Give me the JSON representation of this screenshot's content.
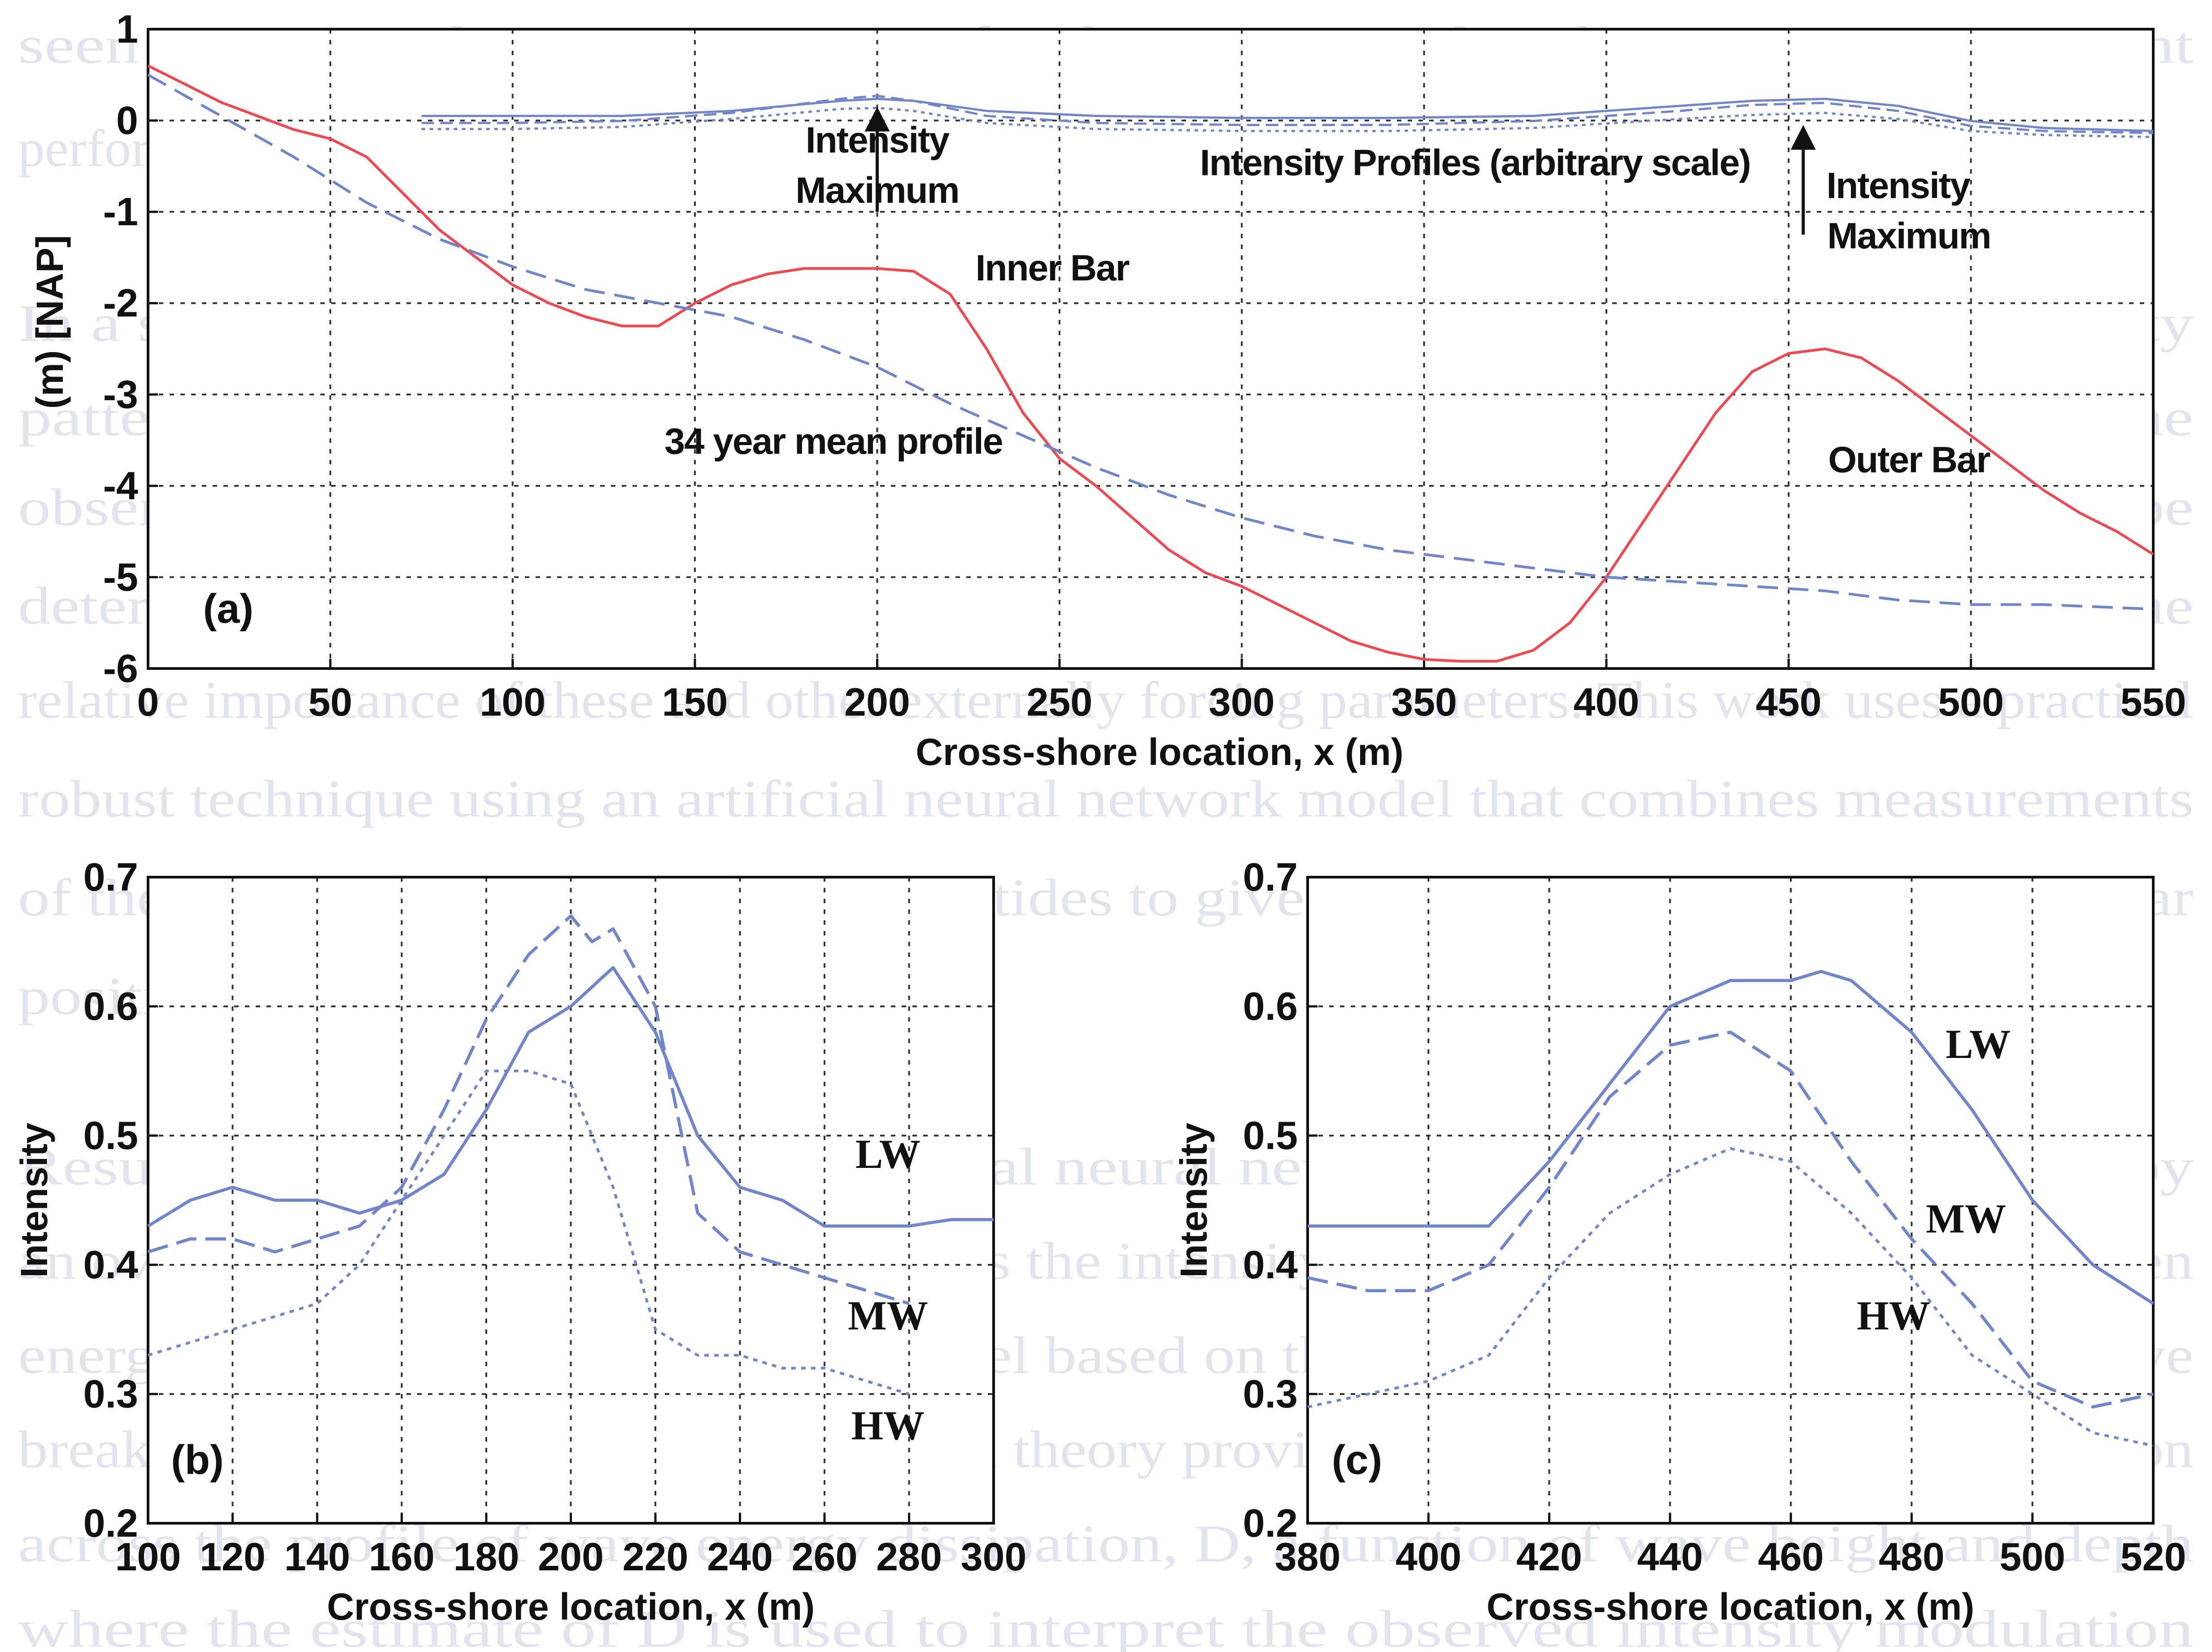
{
  "background_text": [
    "seen over time the mean position of sediment cross shoreline to more consistent",
    "performance",
    "In a satisfactory manner for quantifying the discrepancy between image intensity",
    "patterns and actual sand bar morphology locations has yet to be established. The",
    "observed modulation of the intensity maximum due to waves and tides ought to be",
    "deterministic process that can be accounted for, the problem being to determine the",
    "relative importance of these and other externally forcing parameters. This work uses a practical",
    "robust technique using an artificial neural network model that combines measurements",
    "of the intensity maximum, waves and tides to give accurate estimates of sub-tidal bar",
    "positions.",
    "Results are then given on the artificial neural network model. This is followed by",
    "an overview part of the model compares the intensity modulation dependency to a given",
    "energy dissipation generated by a model based on the Battjes and Janssen (1978) wave",
    "breaking theory. The Battjes and Janssen theory provides the cross-shore transfer variation",
    "across the profile of wave energy dissipation, D, a function of wave height and depth",
    "where the estimate of D is used to interpret the observed intensity modulation"
  ],
  "colors": {
    "profile_red": "#f0484e",
    "mean_profile_blue": "#6f86cc",
    "intensity_blue": "#6f86cc",
    "grid": "#333333",
    "axis": "#111111"
  },
  "chart_data": [
    {
      "id": "a",
      "type": "line",
      "panel_label": "(a)",
      "xlabel": "Cross-shore location, x (m)",
      "ylabel": "(m) [NAP]",
      "xlim": [
        0,
        550
      ],
      "ylim": [
        -6,
        1
      ],
      "xticks": [
        0,
        50,
        100,
        150,
        200,
        250,
        300,
        350,
        400,
        450,
        500,
        550
      ],
      "yticks": [
        1,
        0,
        -1,
        -2,
        -3,
        -4,
        -5,
        -6
      ],
      "grid": true,
      "series": [
        {
          "style": "solid-red",
          "x": [
            0,
            10,
            20,
            30,
            40,
            50,
            60,
            70,
            80,
            90,
            100,
            110,
            120,
            130,
            140,
            150,
            160,
            170,
            180,
            190,
            200,
            210,
            220,
            230,
            240,
            250,
            260,
            270,
            280,
            290,
            300,
            310,
            320,
            330,
            340,
            350,
            360,
            370,
            380,
            390,
            400,
            410,
            420,
            430,
            440,
            450,
            460,
            470,
            480,
            490,
            500,
            510,
            520,
            530,
            540,
            550
          ],
          "y": [
            0.6,
            0.4,
            0.2,
            0.05,
            -0.1,
            -0.2,
            -0.4,
            -0.8,
            -1.2,
            -1.5,
            -1.8,
            -2.0,
            -2.15,
            -2.25,
            -2.25,
            -2.0,
            -1.8,
            -1.68,
            -1.62,
            -1.62,
            -1.62,
            -1.65,
            -1.9,
            -2.5,
            -3.2,
            -3.7,
            -4.0,
            -4.35,
            -4.7,
            -4.95,
            -5.1,
            -5.3,
            -5.5,
            -5.7,
            -5.82,
            -5.9,
            -5.92,
            -5.92,
            -5.8,
            -5.5,
            -5.0,
            -4.4,
            -3.8,
            -3.2,
            -2.75,
            -2.55,
            -2.5,
            -2.6,
            -2.85,
            -3.15,
            -3.45,
            -3.75,
            -4.05,
            -4.3,
            -4.5,
            -4.75
          ]
        },
        {
          "style": "dashed-blue",
          "x": [
            0,
            20,
            40,
            60,
            80,
            100,
            120,
            140,
            160,
            180,
            200,
            220,
            240,
            260,
            280,
            300,
            320,
            340,
            360,
            380,
            400,
            420,
            440,
            460,
            480,
            500,
            520,
            550
          ],
          "y": [
            0.5,
            0.05,
            -0.4,
            -0.9,
            -1.3,
            -1.6,
            -1.85,
            -2.0,
            -2.15,
            -2.4,
            -2.7,
            -3.1,
            -3.45,
            -3.8,
            -4.1,
            -4.35,
            -4.55,
            -4.7,
            -4.8,
            -4.9,
            -5.0,
            -5.05,
            -5.1,
            -5.15,
            -5.25,
            -5.3,
            -5.3,
            -5.35
          ]
        },
        {
          "style": "intensity-profile-solid",
          "x": [
            75,
            100,
            130,
            160,
            190,
            200,
            210,
            230,
            260,
            300,
            340,
            380,
            420,
            440,
            460,
            480,
            500,
            520,
            550
          ],
          "y": [
            0.45,
            0.45,
            0.45,
            0.5,
            0.6,
            0.62,
            0.6,
            0.5,
            0.45,
            0.43,
            0.43,
            0.45,
            0.55,
            0.6,
            0.62,
            0.55,
            0.4,
            0.33,
            0.3
          ]
        },
        {
          "style": "intensity-profile-dashed",
          "x": [
            75,
            100,
            130,
            160,
            190,
            200,
            210,
            230,
            260,
            300,
            340,
            380,
            420,
            440,
            460,
            480,
            500,
            520,
            550
          ],
          "y": [
            0.38,
            0.38,
            0.4,
            0.48,
            0.62,
            0.65,
            0.6,
            0.45,
            0.38,
            0.36,
            0.36,
            0.4,
            0.5,
            0.56,
            0.58,
            0.5,
            0.35,
            0.3,
            0.28
          ]
        },
        {
          "style": "intensity-profile-dotted",
          "x": [
            75,
            100,
            130,
            160,
            190,
            200,
            210,
            230,
            260,
            300,
            340,
            380,
            420,
            440,
            460,
            480,
            500,
            520,
            550
          ],
          "y": [
            0.32,
            0.32,
            0.34,
            0.42,
            0.52,
            0.53,
            0.5,
            0.38,
            0.32,
            0.3,
            0.3,
            0.33,
            0.42,
            0.46,
            0.48,
            0.42,
            0.3,
            0.26,
            0.24
          ]
        }
      ],
      "annotations": [
        {
          "text": "Intensity",
          "x": 200,
          "y": -0.35,
          "anchor": "middle"
        },
        {
          "text": "Maximum",
          "x": 200,
          "y": -0.9,
          "anchor": "middle"
        },
        {
          "text": "Intensity Profiles (arbitrary scale)",
          "x": 364,
          "y": -0.6,
          "anchor": "middle"
        },
        {
          "text": "Intensity",
          "x": 480,
          "y": -0.85,
          "anchor": "middle"
        },
        {
          "text": "Maximum",
          "x": 483,
          "y": -1.4,
          "anchor": "middle"
        },
        {
          "text": "Inner Bar",
          "x": 248,
          "y": -1.75,
          "anchor": "middle"
        },
        {
          "text": "34 year mean profile",
          "x": 188,
          "y": -3.65,
          "anchor": "middle"
        },
        {
          "text": "Outer Bar",
          "x": 483,
          "y": -3.85,
          "anchor": "middle"
        }
      ],
      "arrows": [
        {
          "x": 200,
          "y_from": -1.0,
          "y_to": 0.15
        },
        {
          "x": 454,
          "y_from": -1.25,
          "y_to": -0.05
        }
      ]
    },
    {
      "id": "b",
      "type": "line",
      "panel_label": "(b)",
      "xlabel": "Cross-shore location, x (m)",
      "ylabel": "Intensity",
      "xlim": [
        100,
        300
      ],
      "ylim": [
        0.2,
        0.7
      ],
      "xticks": [
        100,
        120,
        140,
        160,
        180,
        200,
        220,
        240,
        260,
        280,
        300
      ],
      "yticks": [
        0.7,
        0.6,
        0.5,
        0.4,
        0.3,
        0.2
      ],
      "grid": true,
      "series": [
        {
          "name": "LW",
          "style": "solid",
          "x": [
            100,
            110,
            120,
            130,
            140,
            150,
            160,
            170,
            180,
            190,
            200,
            210,
            220,
            230,
            240,
            250,
            260,
            270,
            280,
            290,
            300
          ],
          "y": [
            0.43,
            0.45,
            0.46,
            0.45,
            0.45,
            0.44,
            0.45,
            0.47,
            0.52,
            0.58,
            0.6,
            0.63,
            0.58,
            0.5,
            0.46,
            0.45,
            0.43,
            0.43,
            0.43,
            0.435,
            0.435
          ]
        },
        {
          "name": "MW",
          "style": "dashed",
          "x": [
            100,
            110,
            120,
            130,
            140,
            150,
            160,
            170,
            180,
            190,
            200,
            205,
            210,
            220,
            225,
            230,
            240,
            250,
            260,
            270,
            280
          ],
          "y": [
            0.41,
            0.42,
            0.42,
            0.41,
            0.42,
            0.43,
            0.46,
            0.52,
            0.59,
            0.64,
            0.67,
            0.65,
            0.66,
            0.6,
            0.52,
            0.44,
            0.41,
            0.4,
            0.39,
            0.38,
            0.37
          ]
        },
        {
          "name": "HW",
          "style": "dotted",
          "x": [
            100,
            110,
            120,
            130,
            140,
            150,
            160,
            170,
            180,
            190,
            200,
            210,
            220,
            230,
            240,
            250,
            260,
            270,
            280
          ],
          "y": [
            0.33,
            0.34,
            0.35,
            0.36,
            0.37,
            0.4,
            0.45,
            0.5,
            0.55,
            0.55,
            0.54,
            0.46,
            0.35,
            0.33,
            0.33,
            0.32,
            0.32,
            0.31,
            0.3
          ]
        }
      ],
      "labels": [
        {
          "text": "LW",
          "x": 275,
          "y": 0.475
        },
        {
          "text": "MW",
          "x": 275,
          "y": 0.35
        },
        {
          "text": "HW",
          "x": 275,
          "y": 0.265
        }
      ]
    },
    {
      "id": "c",
      "type": "line",
      "panel_label": "(c)",
      "xlabel": "Cross-shore location, x (m)",
      "ylabel": "Intensity",
      "xlim": [
        380,
        520
      ],
      "ylim": [
        0.2,
        0.7
      ],
      "xticks": [
        380,
        400,
        420,
        440,
        460,
        480,
        500,
        520
      ],
      "yticks": [
        0.7,
        0.6,
        0.5,
        0.4,
        0.3,
        0.2
      ],
      "grid": true,
      "series": [
        {
          "name": "LW",
          "style": "solid",
          "x": [
            380,
            390,
            400,
            410,
            420,
            430,
            440,
            450,
            460,
            465,
            470,
            480,
            490,
            500,
            510,
            520
          ],
          "y": [
            0.43,
            0.43,
            0.43,
            0.43,
            0.48,
            0.54,
            0.6,
            0.62,
            0.62,
            0.627,
            0.62,
            0.58,
            0.52,
            0.45,
            0.4,
            0.37
          ]
        },
        {
          "name": "MW",
          "style": "dashed",
          "x": [
            380,
            390,
            400,
            410,
            420,
            430,
            440,
            450,
            460,
            470,
            480,
            490,
            500,
            510,
            520
          ],
          "y": [
            0.39,
            0.38,
            0.38,
            0.4,
            0.46,
            0.53,
            0.57,
            0.58,
            0.55,
            0.48,
            0.42,
            0.37,
            0.31,
            0.29,
            0.3
          ]
        },
        {
          "name": "HW",
          "style": "dotted",
          "x": [
            380,
            390,
            400,
            410,
            420,
            430,
            440,
            450,
            460,
            470,
            480,
            490,
            500,
            510,
            520
          ],
          "y": [
            0.29,
            0.3,
            0.31,
            0.33,
            0.39,
            0.44,
            0.47,
            0.49,
            0.48,
            0.44,
            0.39,
            0.33,
            0.3,
            0.27,
            0.26
          ]
        }
      ],
      "labels": [
        {
          "text": "LW",
          "x": 491,
          "y": 0.56
        },
        {
          "text": "MW",
          "x": 489,
          "y": 0.425
        },
        {
          "text": "HW",
          "x": 477,
          "y": 0.35
        }
      ]
    }
  ]
}
